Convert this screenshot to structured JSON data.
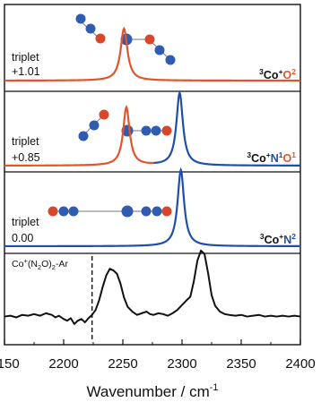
{
  "chart_data": {
    "type": "line",
    "xlabel": "Wavenumber / cm",
    "xlabel_sup": "-1",
    "xlim": [
      2150,
      2400
    ],
    "xticks": [
      "2150",
      "2200",
      "2250",
      "2300",
      "2350",
      "2400"
    ],
    "colors": {
      "co": "#e2542a",
      "n": "#1f4fa8",
      "exp": "#111111",
      "co_atom": "#2f5cb0",
      "o_atom": "#d9472b",
      "n_atom": "#1c2f78"
    },
    "panels": [
      {
        "id": "co2",
        "state": "triplet",
        "energy": "+1.01",
        "species": {
          "pre": "3",
          "base": "Co",
          "plus": "+",
          "l1": "O",
          "sub1": "2",
          "l2": "",
          "sub2": ""
        },
        "peaks": [
          {
            "center": 2251,
            "height": 1.0,
            "width": 3.5,
            "color": "#e2542a"
          }
        ],
        "color_split": null
      },
      {
        "id": "con1o1",
        "state": "triplet",
        "energy": "+0.85",
        "species": {
          "pre": "3",
          "base": "Co",
          "plus": "+",
          "l1": "N",
          "sub1": "1",
          "l2": "O",
          "sub2": "1"
        },
        "peaks": [
          {
            "center": 2253,
            "height": 0.72,
            "width": 3.3,
            "color": "#e2542a"
          },
          {
            "center": 2298,
            "height": 0.9,
            "width": 3.3,
            "color": "#1f4fa8"
          }
        ],
        "color_split": 2276
      },
      {
        "id": "con2",
        "state": "triplet",
        "energy": "0.00",
        "species": {
          "pre": "3",
          "base": "Co",
          "plus": "+",
          "l1": "N",
          "sub1": "2",
          "l2": "",
          "sub2": ""
        },
        "peaks": [
          {
            "center": 2299,
            "height": 1.0,
            "width": 3.3,
            "color": "#1f4fa8"
          }
        ],
        "color_split": null
      }
    ],
    "experimental": {
      "label": {
        "base": "Co",
        "plus": "+",
        "mid": "(N",
        "sub": "2",
        "tail1": "O)",
        "sub2": "2",
        "tail2": "-Ar"
      },
      "dashed_line_x": 2224,
      "points": [
        [
          2150,
          0.32
        ],
        [
          2155,
          0.33
        ],
        [
          2160,
          0.31
        ],
        [
          2165,
          0.34
        ],
        [
          2170,
          0.33
        ],
        [
          2175,
          0.35
        ],
        [
          2180,
          0.33
        ],
        [
          2185,
          0.36
        ],
        [
          2190,
          0.34
        ],
        [
          2193,
          0.31
        ],
        [
          2196,
          0.33
        ],
        [
          2200,
          0.29
        ],
        [
          2203,
          0.27
        ],
        [
          2206,
          0.3
        ],
        [
          2209,
          0.23
        ],
        [
          2212,
          0.27
        ],
        [
          2215,
          0.29
        ],
        [
          2218,
          0.25
        ],
        [
          2221,
          0.3
        ],
        [
          2224,
          0.34
        ],
        [
          2227,
          0.4
        ],
        [
          2230,
          0.52
        ],
        [
          2233,
          0.68
        ],
        [
          2236,
          0.82
        ],
        [
          2239,
          0.9
        ],
        [
          2242,
          0.88
        ],
        [
          2245,
          0.84
        ],
        [
          2248,
          0.72
        ],
        [
          2251,
          0.55
        ],
        [
          2254,
          0.44
        ],
        [
          2258,
          0.38
        ],
        [
          2262,
          0.34
        ],
        [
          2266,
          0.36
        ],
        [
          2270,
          0.38
        ],
        [
          2273,
          0.35
        ],
        [
          2276,
          0.34
        ],
        [
          2280,
          0.36
        ],
        [
          2284,
          0.35
        ],
        [
          2288,
          0.33
        ],
        [
          2292,
          0.36
        ],
        [
          2296,
          0.4
        ],
        [
          2300,
          0.46
        ],
        [
          2304,
          0.52
        ],
        [
          2307,
          0.56
        ],
        [
          2310,
          0.75
        ],
        [
          2313,
          1.0
        ],
        [
          2316,
          1.12
        ],
        [
          2319,
          1.08
        ],
        [
          2322,
          0.85
        ],
        [
          2325,
          0.58
        ],
        [
          2328,
          0.45
        ],
        [
          2332,
          0.38
        ],
        [
          2336,
          0.35
        ],
        [
          2340,
          0.34
        ],
        [
          2345,
          0.33
        ],
        [
          2350,
          0.34
        ],
        [
          2355,
          0.32
        ],
        [
          2360,
          0.33
        ],
        [
          2365,
          0.34
        ],
        [
          2370,
          0.32
        ],
        [
          2375,
          0.33
        ],
        [
          2380,
          0.32
        ],
        [
          2385,
          0.33
        ],
        [
          2390,
          0.32
        ],
        [
          2395,
          0.33
        ],
        [
          2400,
          0.32
        ]
      ]
    }
  }
}
